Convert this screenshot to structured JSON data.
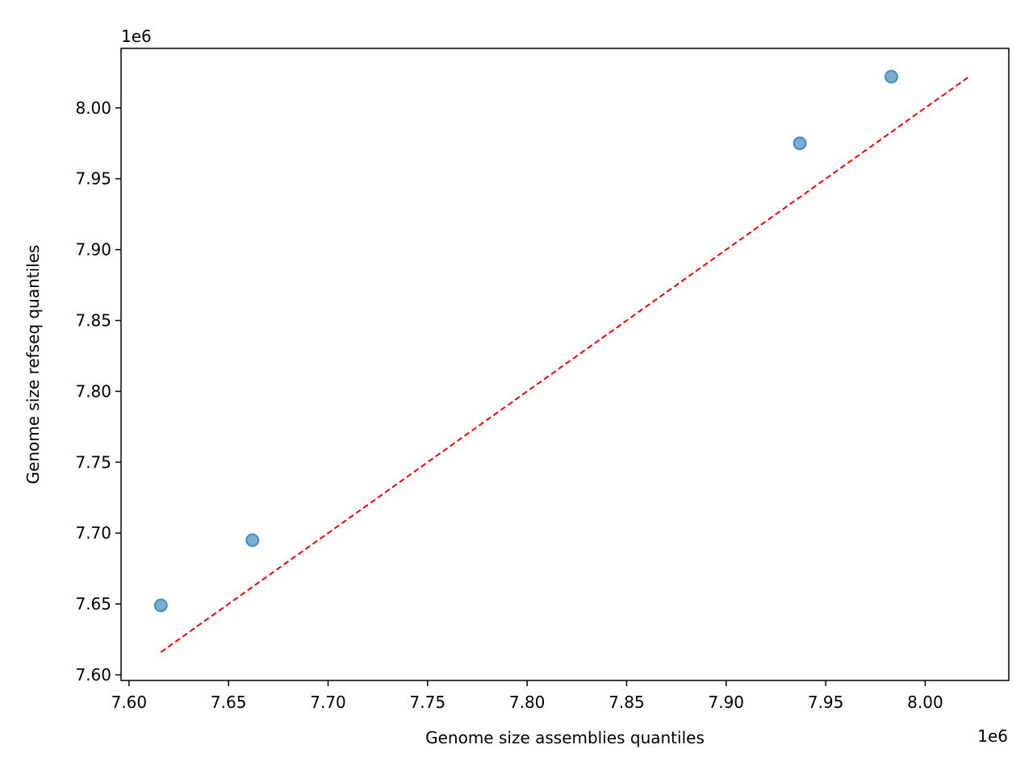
{
  "chart_data": {
    "type": "scatter",
    "title": "",
    "xlabel": "Genome size assemblies quantiles",
    "ylabel": "Genome size refseq quantiles",
    "x_offset_text": "1e6",
    "y_offset_text": "1e6",
    "xlim": [
      7.596,
      8.042
    ],
    "ylim": [
      7.596,
      8.042
    ],
    "xticks": [
      "7.60",
      "7.65",
      "7.70",
      "7.75",
      "7.80",
      "7.85",
      "7.90",
      "7.95",
      "8.00"
    ],
    "yticks": [
      "7.60",
      "7.65",
      "7.70",
      "7.75",
      "7.80",
      "7.85",
      "7.90",
      "7.95",
      "8.00"
    ],
    "tick_values": [
      7.6,
      7.65,
      7.7,
      7.75,
      7.8,
      7.85,
      7.9,
      7.95,
      8.0
    ],
    "points": [
      {
        "x": 7.616,
        "y": 7.649
      },
      {
        "x": 7.662,
        "y": 7.695
      },
      {
        "x": 7.937,
        "y": 7.975
      },
      {
        "x": 7.983,
        "y": 8.022
      }
    ],
    "reference_line": {
      "x": [
        7.616,
        8.022
      ],
      "y": [
        7.616,
        8.022
      ],
      "style": "dashed"
    },
    "colors": {
      "points": "#1f77b4",
      "reference_line": "#ff0000"
    },
    "grid": false,
    "legend": "none"
  }
}
